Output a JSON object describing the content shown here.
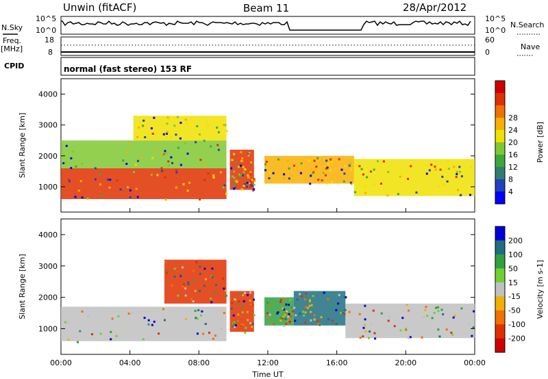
{
  "header": {
    "station": "Unwin (fitACF)",
    "beam": "Beam 11",
    "date": "28/Apr/2012"
  },
  "strips": {
    "nsky_label": "N.Sky",
    "nsky_ticks": [
      "10^5",
      "10^0"
    ],
    "nsearch_label": "N.Search",
    "nsearch_ticks": [
      "10^5",
      "10^0"
    ],
    "freq_label": "Freq.",
    "freq_unit": "[MHz]",
    "freq_ticks": [
      "18",
      "8"
    ],
    "nave_label": "Nave",
    "nave_ticks": [
      "60",
      "0"
    ],
    "cpid_label": "CPID",
    "cpid_text": "normal (fast stereo) 153 RF"
  },
  "chart_data": [
    {
      "type": "heatmap",
      "panel": "power",
      "ylabel": "Slant Range [km]",
      "ylim": [
        180,
        4500
      ],
      "y_ticks": [
        1000,
        2000,
        3000,
        4000
      ],
      "x_ticks": [
        "00:00",
        "04:00",
        "08:00",
        "12:00",
        "16:00",
        "20:00",
        "00:00"
      ],
      "colorbar_label": "Power [dB]",
      "colorbar_levels": [
        4,
        8,
        12,
        16,
        20,
        24,
        28
      ],
      "colorbar_colors": [
        "#0000ff",
        "#2040c0",
        "#2f7f6f",
        "#3ca83c",
        "#80c830",
        "#f0e000",
        "#f8b000",
        "#f07000",
        "#e03000",
        "#d00000"
      ],
      "regions": [
        {
          "t_start": 0.0,
          "t_end": 9.6,
          "range_start": 600,
          "range_end": 1600,
          "level": 28
        },
        {
          "t_start": 0.0,
          "t_end": 9.6,
          "range_start": 1600,
          "range_end": 2500,
          "level": 14
        },
        {
          "t_start": 4.2,
          "t_end": 9.6,
          "range_start": 2500,
          "range_end": 3300,
          "level": 18
        },
        {
          "t_start": 9.8,
          "t_end": 11.2,
          "range_start": 900,
          "range_end": 2200,
          "level": 26
        },
        {
          "t_start": 11.8,
          "t_end": 17.0,
          "range_start": 1100,
          "range_end": 2000,
          "level": 24
        },
        {
          "t_start": 17.0,
          "t_end": 24.0,
          "range_start": 700,
          "range_end": 1900,
          "level": 20
        }
      ]
    },
    {
      "type": "heatmap",
      "panel": "velocity",
      "ylabel": "Slant Range [km]",
      "xlabel": "Time UT",
      "ylim": [
        180,
        4500
      ],
      "y_ticks": [
        1000,
        2000,
        3000,
        4000
      ],
      "x_ticks": [
        "00:00",
        "04:00",
        "08:00",
        "12:00",
        "16:00",
        "20:00",
        "00:00"
      ],
      "colorbar_label": "Velocity [m s-1]",
      "colorbar_levels": [
        200,
        100,
        50,
        15,
        -15,
        -50,
        -100,
        -200
      ],
      "colorbar_colors": [
        "#0000d8",
        "#206e80",
        "#30a040",
        "#70d030",
        "#c0c0c0",
        "#f0b000",
        "#f07000",
        "#e03000",
        "#d00000"
      ],
      "regions": [
        {
          "t_start": 0.0,
          "t_end": 9.6,
          "range_start": 600,
          "range_end": 1700,
          "level": -10
        },
        {
          "t_start": 6.0,
          "t_end": 9.6,
          "range_start": 1800,
          "range_end": 3200,
          "level": -150
        },
        {
          "t_start": 9.8,
          "t_end": 11.2,
          "range_start": 900,
          "range_end": 2200,
          "level": -200
        },
        {
          "t_start": 11.8,
          "t_end": 13.5,
          "range_start": 1100,
          "range_end": 2000,
          "level": 60
        },
        {
          "t_start": 13.5,
          "t_end": 16.5,
          "range_start": 1100,
          "range_end": 2200,
          "level": 180
        },
        {
          "t_start": 16.5,
          "t_end": 24.0,
          "range_start": 700,
          "range_end": 1800,
          "level": 0
        }
      ]
    }
  ]
}
